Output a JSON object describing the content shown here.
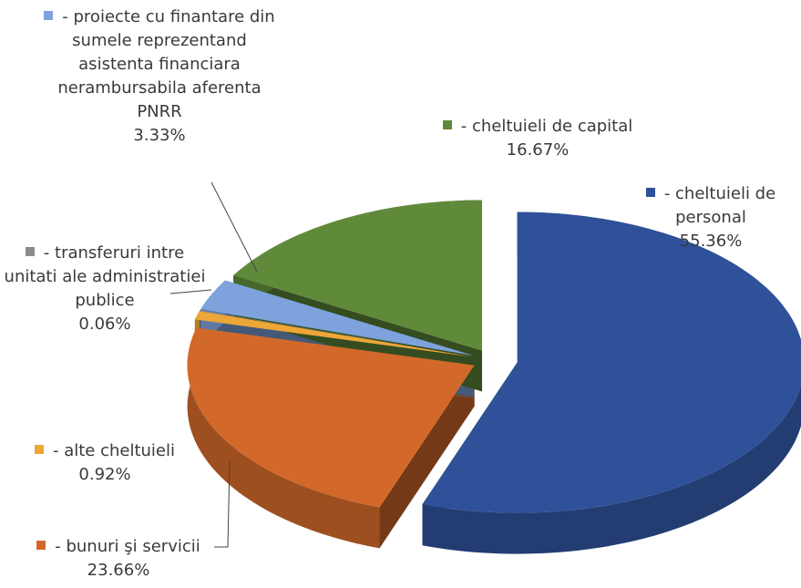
{
  "chart_data": {
    "type": "pie",
    "categories": [
      "- cheltuieli de personal",
      "- bunuri şi servicii",
      "- alte cheltuieli",
      "- transferuri intre unitati ale administratiei publice",
      "- proiecte cu finantare din sumele reprezentand asistenta financiara nerambursabila aferenta PNRR",
      "- cheltuieli de capital"
    ],
    "values": [
      55.36,
      23.66,
      0.92,
      0.06,
      3.33,
      16.67
    ],
    "value_labels": [
      "55.36%",
      "23.66%",
      "0.92%",
      "0.06%",
      "3.33%",
      "16.67%"
    ],
    "colors": [
      "#2f5199",
      "#d2692a",
      "#eda637",
      "#8c8c8c",
      "#7ea2dc",
      "#5f8a3a"
    ]
  }
}
